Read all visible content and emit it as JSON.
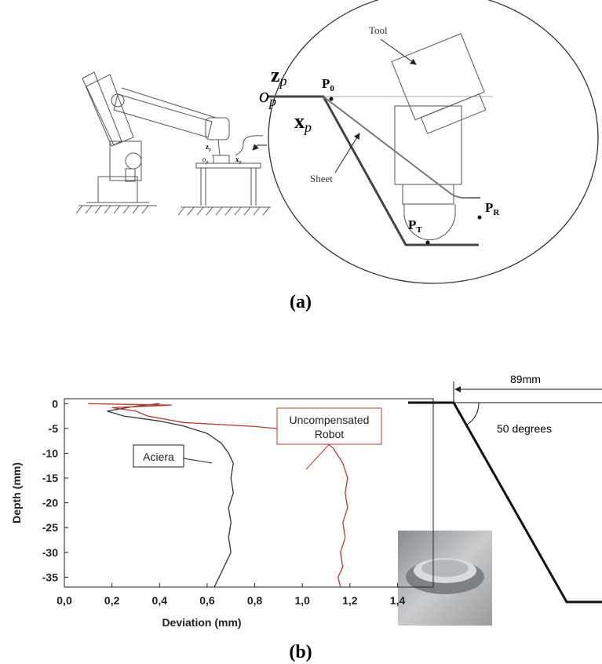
{
  "panel_a": {
    "frame_labels": [
      {
        "main": "z",
        "sub": "p"
      },
      {
        "main": "o",
        "sub": "p"
      },
      {
        "main": "x",
        "sub": "p"
      }
    ],
    "robot_labels": [
      {
        "main": "z",
        "sub": "p"
      },
      {
        "main": "o",
        "sub": "p"
      },
      {
        "main": "x",
        "sub": "p"
      }
    ],
    "points": [
      {
        "main": "P",
        "sub": "0"
      },
      {
        "main": "P",
        "sub": "R"
      },
      {
        "main": "P",
        "sub": "T"
      }
    ],
    "tool": "Tool",
    "sheet": "Sheet",
    "caption": "(a)"
  },
  "chart_data": {
    "type": "line",
    "x_label": "Deviation (mm)",
    "y_label": "Depth (mm)",
    "xlim": [
      0,
      1.55
    ],
    "ylim": [
      -37,
      1
    ],
    "xticks": [
      {
        "value": 0,
        "label": "0,0"
      },
      {
        "value": 0.2,
        "label": "0,2"
      },
      {
        "value": 0.4,
        "label": "0,4"
      },
      {
        "value": 0.6,
        "label": "0,6"
      },
      {
        "value": 0.8,
        "label": "0,8"
      },
      {
        "value": 1.0,
        "label": "1,0"
      },
      {
        "value": 1.2,
        "label": "1,2"
      },
      {
        "value": 1.4,
        "label": "1,4"
      }
    ],
    "yticks": [
      0,
      -5,
      -10,
      -15,
      -20,
      -25,
      -30,
      -35
    ],
    "series": [
      {
        "color": "#333333",
        "x": [
          0.4,
          0.3,
          0.18,
          0.25,
          0.4,
          0.5,
          0.6,
          0.66,
          0.69,
          0.71,
          0.7,
          0.71,
          0.69,
          0.7,
          0.69,
          0.7,
          0.68,
          0.66,
          0.64,
          0.63
        ],
        "values": [
          0,
          -0.5,
          -1.5,
          -2.5,
          -3.5,
          -4.5,
          -6,
          -8,
          -10,
          -12,
          -15,
          -18,
          -21,
          -24,
          -27,
          -30,
          -32,
          -34,
          -36,
          -37
        ]
      },
      {
        "color": "#c0392b",
        "x": [
          0.1,
          0.45,
          0.2,
          0.3,
          0.35,
          0.5,
          0.8,
          1.0,
          1.08,
          1.13,
          1.17,
          1.19,
          1.18,
          1.19,
          1.17,
          1.18,
          1.16,
          1.17,
          1.15,
          1.16
        ],
        "values": [
          0,
          -0.3,
          -0.8,
          -1.5,
          -2.5,
          -3.8,
          -4.6,
          -5.5,
          -7,
          -9,
          -12,
          -15,
          -18,
          -21,
          -24,
          -27,
          -30,
          -33,
          -35,
          -37
        ]
      }
    ],
    "annotations": [
      {
        "lines": [
          "Aciera"
        ]
      },
      {
        "lines": [
          "Uncompensated",
          "Robot"
        ]
      }
    ]
  },
  "panel_b": {
    "dimension": "89mm",
    "angle": "50 degrees",
    "caption": "(b)"
  }
}
